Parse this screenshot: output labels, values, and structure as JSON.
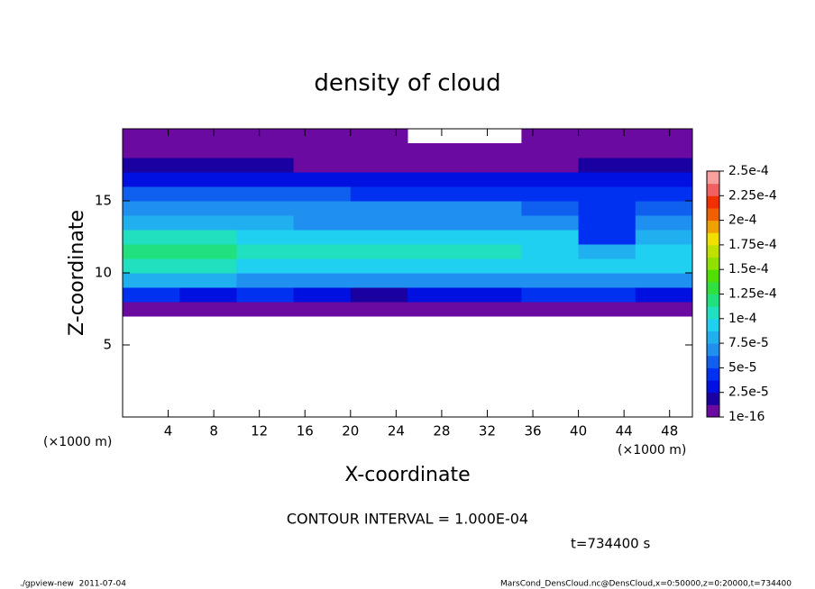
{
  "chart_data": {
    "type": "heatmap",
    "title": "density of cloud",
    "xlabel": "X-coordinate",
    "ylabel": "Z-coordinate",
    "x_unit": "(×1000 m)",
    "xlim": [
      0,
      50
    ],
    "ylim": [
      0,
      20
    ],
    "xticks": [
      4,
      8,
      12,
      16,
      20,
      24,
      28,
      32,
      36,
      40,
      44,
      48
    ],
    "yticks": [
      5,
      10,
      15
    ],
    "x": [
      2.5,
      7.5,
      12.5,
      17.5,
      22.5,
      27.5,
      32.5,
      37.5,
      42.5,
      47.5
    ],
    "y": [
      7.5,
      8.5,
      9.5,
      10.5,
      11.5,
      12.5,
      13.5,
      14.5,
      15.5,
      16.5,
      17.5,
      18.5,
      19.5
    ],
    "values": [
      [
        5e-06,
        5e-06,
        5e-06,
        5e-06,
        5e-06,
        5e-06,
        5e-06,
        5e-06,
        5e-06,
        5e-06
      ],
      [
        4e-05,
        3e-05,
        4e-05,
        3e-05,
        2e-05,
        3e-05,
        3e-05,
        4e-05,
        4e-05,
        3e-05
      ],
      [
        8e-05,
        8e-05,
        7.5e-05,
        7e-05,
        7e-05,
        7e-05,
        7e-05,
        6.5e-05,
        7e-05,
        7e-05
      ],
      [
        0.00011,
        0.00011,
        0.0001,
        9.5e-05,
        9.5e-05,
        9.5e-05,
        9.5e-05,
        9e-05,
        9.5e-05,
        9.5e-05
      ],
      [
        0.00012,
        0.000125,
        0.00011,
        0.000105,
        0.000105,
        0.000105,
        0.000105,
        0.0001,
        8e-05,
        0.0001
      ],
      [
        0.000105,
        0.00011,
        0.0001,
        9.5e-05,
        9e-05,
        9e-05,
        9.5e-05,
        9e-05,
        5e-05,
        8e-05
      ],
      [
        8.5e-05,
        8.5e-05,
        8e-05,
        7.5e-05,
        7.5e-05,
        7.5e-05,
        7.5e-05,
        7e-05,
        4.5e-05,
        7e-05
      ],
      [
        7e-05,
        7e-05,
        6.5e-05,
        6.5e-05,
        6.5e-05,
        6.5e-05,
        6.5e-05,
        6e-05,
        5e-05,
        6e-05
      ],
      [
        5.5e-05,
        5.5e-05,
        5.5e-05,
        5.5e-05,
        5e-05,
        5e-05,
        5e-05,
        5e-05,
        4.5e-05,
        5e-05
      ],
      [
        3.5e-05,
        3.5e-05,
        3e-05,
        3e-05,
        3.5e-05,
        3.5e-05,
        3.5e-05,
        3.5e-05,
        3.5e-05,
        3e-05
      ],
      [
        1.5e-05,
        1.5e-05,
        1.5e-05,
        1e-05,
        1e-05,
        1e-05,
        1e-05,
        1e-05,
        1.5e-05,
        1.5e-05
      ],
      [
        5e-06,
        5e-06,
        5e-06,
        5e-06,
        5e-06,
        5e-06,
        5e-06,
        5e-06,
        5e-06,
        5e-06
      ],
      [
        3e-06,
        3e-06,
        3e-06,
        3e-06,
        3e-06,
        null,
        null,
        3e-06,
        3e-06,
        3e-06
      ]
    ],
    "colorbar": {
      "ticks": [
        1e-16,
        {
          "value": 2.5e-05,
          "label": "2.5e-5"
        },
        {
          "value": 5e-05,
          "label": "5e-5"
        },
        {
          "value": 7.5e-05,
          "label": "7.5e-5"
        },
        {
          "value": 0.0001,
          "label": "1e-4"
        },
        {
          "value": 0.000125,
          "label": "1.25e-4"
        },
        {
          "value": 0.00015,
          "label": "1.5e-4"
        },
        {
          "value": 0.000175,
          "label": "1.75e-4"
        },
        {
          "value": 0.0002,
          "label": "2e-4"
        },
        {
          "value": 0.000225,
          "label": "2.25e-4"
        },
        {
          "value": 0.00025,
          "label": "2.5e-4"
        }
      ],
      "colors": [
        "#6a0aa0",
        "#1a00a0",
        "#0010e0",
        "#0030f0",
        "#1060f0",
        "#2090f0",
        "#20b0f0",
        "#20d0f0",
        "#20e0c0",
        "#20e080",
        "#30e040",
        "#50e000",
        "#90e000",
        "#c0e000",
        "#f0e000",
        "#f0a000",
        "#f06000",
        "#f03000",
        "#f06060",
        "#f8a0a0"
      ]
    },
    "contour_note": "CONTOUR INTERVAL = 1.000E-04",
    "time_label": "t=734400 s",
    "footer_left": "./gpview-new  2011-07-04",
    "footer_right": "MarsCond_DensCloud.nc@DensCloud,x=0:50000,z=0:20000,t=734400"
  }
}
